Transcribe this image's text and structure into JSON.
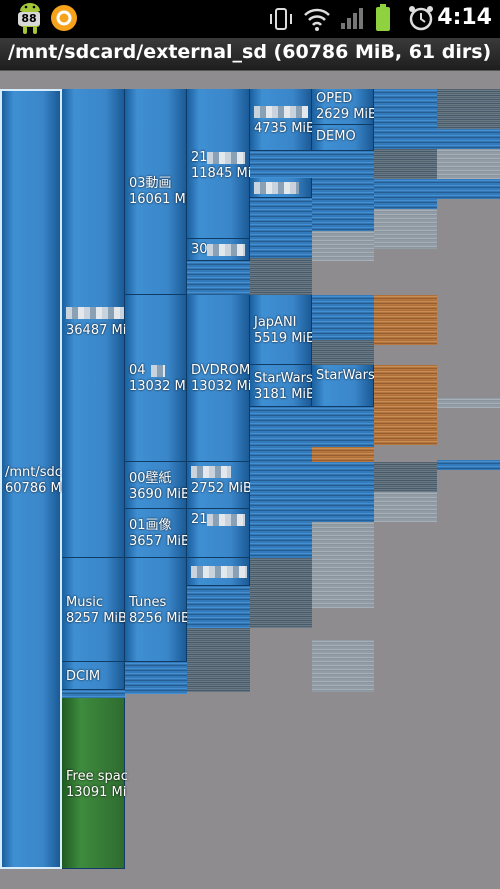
{
  "status_bar": {
    "badge": "88",
    "time": "4:14",
    "icons": [
      "android-icon",
      "sync-icon",
      "vibrate-icon",
      "wifi-icon",
      "signal-icon",
      "battery-icon",
      "alarm-icon"
    ]
  },
  "title": "/mnt/sdcard/external_sd (60786 MiB, 61 dirs)",
  "blocks": [
    {
      "name": "/mnt/sdc",
      "size": "60786 Mi"
    },
    {
      "name": "",
      "size": "36487 Mi"
    },
    {
      "name": "03動画",
      "size": "16061 Mi"
    },
    {
      "name": "21",
      "size": "11845 Mi"
    },
    {
      "name": "",
      "size": "4735 MiB"
    },
    {
      "name": "OPED",
      "size": "2629 MiB"
    },
    {
      "name": "DEMO",
      "size": ""
    },
    {
      "name": "30",
      "size": ""
    },
    {
      "name": "04",
      "size": "13032 Mi"
    },
    {
      "name": "DVDROM",
      "size": "13032 Mi"
    },
    {
      "name": "JapANI",
      "size": "5519 MiB"
    },
    {
      "name": "StarWars",
      "size": "3181 MiB"
    },
    {
      "name": "StarWars",
      "size": ""
    },
    {
      "name": "00壁紙",
      "size": "3690 MiB"
    },
    {
      "name": "",
      "size": "2752 MiB"
    },
    {
      "name": "01画像",
      "size": "3657 MiB"
    },
    {
      "name": "21",
      "size": ""
    },
    {
      "name": "Music",
      "size": "8257 MiB"
    },
    {
      "name": "Tunes",
      "size": "8256 MiB"
    },
    {
      "name": "DCIM",
      "size": ""
    },
    {
      "name": "Free spac",
      "size": "13091 Mi"
    }
  ]
}
